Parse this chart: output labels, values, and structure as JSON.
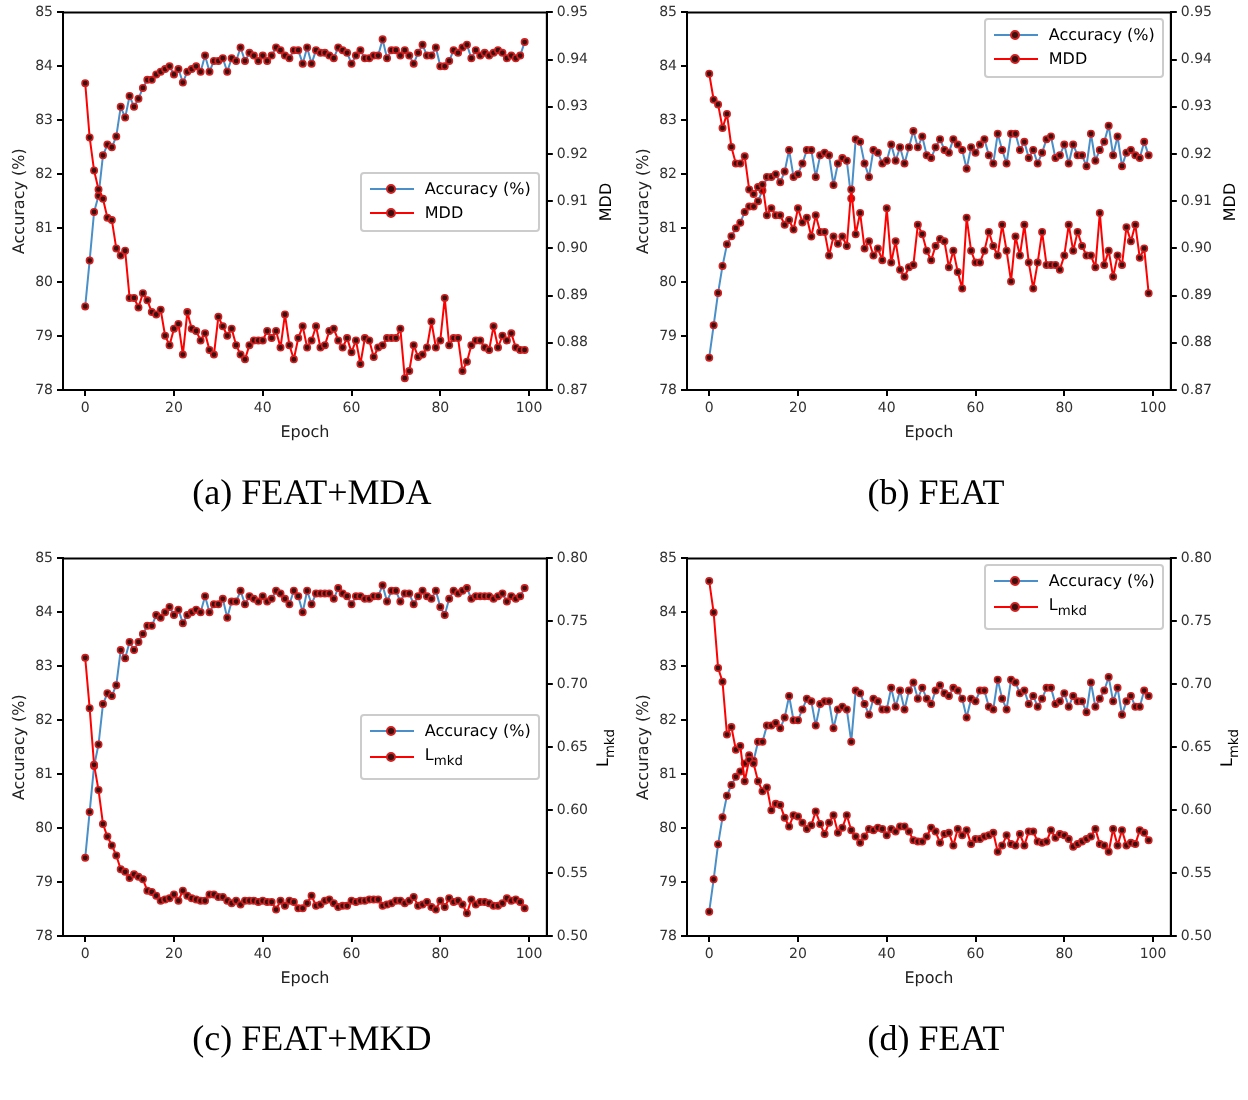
{
  "chart_data": [
    {
      "type": "line",
      "annotations": [
        "(a) FEAT+MDA"
      ],
      "xlabel": "Epoch",
      "ylabel": "Accuracy (%)",
      "y2label": "MDD",
      "legend": "right",
      "marker": "circle",
      "xlim": [
        -5,
        104
      ],
      "xticks": [
        0,
        20,
        40,
        60,
        80,
        100
      ],
      "ylim": [
        78,
        85
      ],
      "yticks": [
        78,
        79,
        80,
        81,
        82,
        83,
        84,
        85
      ],
      "y2lim": [
        0.87,
        0.95
      ],
      "y2ticks": [
        0.87,
        0.88,
        0.89,
        {
          "value": 0.9,
          "label": "0.90"
        },
        0.91,
        0.92,
        0.93,
        0.94,
        0.95
      ],
      "x": [
        0,
        1,
        2,
        3,
        4,
        5,
        6,
        7,
        8,
        9,
        10,
        11,
        12,
        13,
        14,
        15,
        16,
        17,
        18,
        19,
        20,
        21,
        22,
        23,
        24,
        25,
        26,
        27,
        28,
        29,
        30,
        31,
        32,
        33,
        34,
        35,
        36,
        37,
        38,
        39,
        40,
        41,
        42,
        43,
        44,
        45,
        46,
        47,
        48,
        49,
        50,
        51,
        52,
        53,
        54,
        55,
        56,
        57,
        58,
        59,
        60,
        61,
        62,
        63,
        64,
        65,
        66,
        67,
        68,
        69,
        70,
        71,
        72,
        73,
        74,
        75,
        76,
        77,
        78,
        79,
        80,
        81,
        82,
        83,
        84,
        85,
        86,
        87,
        88,
        89,
        90,
        91,
        92,
        93,
        94,
        95,
        96,
        97,
        98,
        99
      ],
      "series": [
        {
          "name": "Accuracy (%)",
          "color": "#4a8fc7",
          "values": [
            79.55,
            80.4,
            81.3,
            81.6,
            82.35,
            82.55,
            82.5,
            82.7,
            83.25,
            83.05,
            83.45,
            83.25,
            83.4,
            83.6,
            83.75,
            83.75,
            83.85,
            83.9,
            83.95,
            84.0,
            83.85,
            83.95,
            83.7,
            83.9,
            83.95,
            84.0,
            83.9,
            84.2,
            83.9,
            84.1,
            84.1,
            84.15,
            83.9,
            84.15,
            84.1,
            84.35,
            84.1,
            84.25,
            84.2,
            84.1,
            84.2,
            84.1,
            84.2,
            84.35,
            84.3,
            84.2,
            84.15,
            84.3,
            84.3,
            84.05,
            84.35,
            84.05,
            84.3,
            84.25,
            84.25,
            84.2,
            84.15,
            84.35,
            84.3,
            84.25,
            84.05,
            84.2,
            84.3,
            84.15,
            84.15,
            84.2,
            84.2,
            84.5,
            84.15,
            84.3,
            84.3,
            84.2,
            84.3,
            84.2,
            84.05,
            84.25,
            84.4,
            84.2,
            84.2,
            84.35,
            84.0,
            84.0,
            84.1,
            84.3,
            84.25,
            84.35,
            84.4,
            84.15,
            84.3,
            84.2,
            84.25,
            84.2,
            84.25,
            84.3,
            84.25,
            84.15,
            84.2,
            84.15,
            84.2,
            84.45
          ]
        },
        {
          "name": "MDD",
          "color": "#ff0000",
          "axis": "y2",
          "values": [
            0.935,
            0.9235,
            0.9165,
            0.9125,
            0.9105,
            0.9065,
            0.906,
            0.9,
            0.8985,
            0.8995,
            0.8895,
            0.8895,
            0.8875,
            0.8905,
            0.889,
            0.8865,
            0.886,
            0.887,
            0.8815,
            0.8795,
            0.883,
            0.884,
            0.8775,
            0.8865,
            0.883,
            0.8825,
            0.8805,
            0.882,
            0.8785,
            0.8775,
            0.8855,
            0.8835,
            0.8815,
            0.883,
            0.8795,
            0.8775,
            0.8765,
            0.8795,
            0.8805,
            0.8805,
            0.8805,
            0.8825,
            0.881,
            0.8825,
            0.879,
            0.886,
            0.8795,
            0.8765,
            0.881,
            0.8835,
            0.879,
            0.8805,
            0.8835,
            0.879,
            0.8795,
            0.8825,
            0.883,
            0.8805,
            0.879,
            0.881,
            0.878,
            0.8805,
            0.8755,
            0.881,
            0.8805,
            0.877,
            0.879,
            0.8795,
            0.881,
            0.881,
            0.881,
            0.883,
            0.8725,
            0.874,
            0.8795,
            0.877,
            0.8775,
            0.879,
            0.8845,
            0.879,
            0.8805,
            0.8895,
            0.8795,
            0.881,
            0.881,
            0.874,
            0.876,
            0.8795,
            0.8805,
            0.8805,
            0.879,
            0.8785,
            0.8835,
            0.879,
            0.8815,
            0.8805,
            0.882,
            0.879,
            0.8785,
            0.8785
          ]
        }
      ]
    },
    {
      "type": "line",
      "annotations": [
        "(b) FEAT"
      ],
      "xlabel": "Epoch",
      "ylabel": "Accuracy (%)",
      "y2label": "MDD",
      "legend": "top right",
      "marker": "circle",
      "xlim": [
        -5,
        104
      ],
      "xticks": [
        0,
        20,
        40,
        60,
        80,
        100
      ],
      "ylim": [
        78,
        85
      ],
      "yticks": [
        78,
        79,
        80,
        81,
        82,
        83,
        84,
        85
      ],
      "y2lim": [
        0.87,
        0.95
      ],
      "y2ticks": [
        0.87,
        0.88,
        0.89,
        {
          "value": 0.9,
          "label": "0.90"
        },
        0.91,
        0.92,
        0.93,
        0.94,
        0.95
      ],
      "x": [
        0,
        1,
        2,
        3,
        4,
        5,
        6,
        7,
        8,
        9,
        10,
        11,
        12,
        13,
        14,
        15,
        16,
        17,
        18,
        19,
        20,
        21,
        22,
        23,
        24,
        25,
        26,
        27,
        28,
        29,
        30,
        31,
        32,
        33,
        34,
        35,
        36,
        37,
        38,
        39,
        40,
        41,
        42,
        43,
        44,
        45,
        46,
        47,
        48,
        49,
        50,
        51,
        52,
        53,
        54,
        55,
        56,
        57,
        58,
        59,
        60,
        61,
        62,
        63,
        64,
        65,
        66,
        67,
        68,
        69,
        70,
        71,
        72,
        73,
        74,
        75,
        76,
        77,
        78,
        79,
        80,
        81,
        82,
        83,
        84,
        85,
        86,
        87,
        88,
        89,
        90,
        91,
        92,
        93,
        94,
        95,
        96,
        97,
        98,
        99
      ],
      "series": [
        {
          "name": "Accuracy (%)",
          "color": "#4a8fc7",
          "values": [
            78.6,
            79.2,
            79.8,
            80.3,
            80.7,
            80.85,
            81.0,
            81.1,
            81.3,
            81.4,
            81.4,
            81.5,
            81.7,
            81.95,
            81.95,
            82.0,
            81.85,
            82.05,
            82.45,
            81.95,
            82.0,
            82.2,
            82.45,
            82.45,
            81.95,
            82.35,
            82.4,
            82.35,
            81.8,
            82.2,
            82.3,
            82.25,
            81.55,
            82.65,
            82.6,
            82.2,
            81.95,
            82.45,
            82.4,
            82.2,
            82.25,
            82.55,
            82.25,
            82.5,
            82.2,
            82.5,
            82.8,
            82.5,
            82.7,
            82.35,
            82.3,
            82.5,
            82.65,
            82.45,
            82.4,
            82.65,
            82.55,
            82.45,
            82.1,
            82.5,
            82.4,
            82.55,
            82.65,
            82.35,
            82.2,
            82.75,
            82.45,
            82.2,
            82.75,
            82.75,
            82.45,
            82.6,
            82.3,
            82.45,
            82.2,
            82.4,
            82.65,
            82.7,
            82.3,
            82.35,
            82.55,
            82.2,
            82.55,
            82.35,
            82.35,
            82.15,
            82.75,
            82.25,
            82.45,
            82.6,
            82.9,
            82.35,
            82.7,
            82.15,
            82.4,
            82.45,
            82.35,
            82.3,
            82.6,
            82.35
          ]
        },
        {
          "name": "MDD",
          "color": "#ff0000",
          "axis": "y2",
          "values": [
            0.937,
            0.9315,
            0.9305,
            0.9255,
            0.9285,
            0.9215,
            0.918,
            0.918,
            0.9195,
            0.9125,
            0.9115,
            0.913,
            0.9135,
            0.907,
            0.9085,
            0.907,
            0.907,
            0.905,
            0.906,
            0.904,
            0.9085,
            0.9055,
            0.9065,
            0.9025,
            0.907,
            0.9035,
            0.9035,
            0.8985,
            0.9025,
            0.901,
            0.9025,
            0.9005,
            0.9125,
            0.903,
            0.9075,
            0.9,
            0.9015,
            0.8985,
            0.9,
            0.8975,
            0.9085,
            0.897,
            0.9015,
            0.8955,
            0.894,
            0.896,
            0.8965,
            0.905,
            0.903,
            0.8995,
            0.8975,
            0.9005,
            0.902,
            0.9015,
            0.896,
            0.8995,
            0.895,
            0.8915,
            0.9065,
            0.8995,
            0.897,
            0.897,
            0.8995,
            0.9035,
            0.9005,
            0.8985,
            0.905,
            0.8995,
            0.893,
            0.9025,
            0.8985,
            0.905,
            0.897,
            0.8915,
            0.897,
            0.9035,
            0.8965,
            0.8965,
            0.8965,
            0.8955,
            0.8985,
            0.905,
            0.8995,
            0.9035,
            0.9005,
            0.8985,
            0.8985,
            0.896,
            0.9075,
            0.8965,
            0.8995,
            0.894,
            0.8985,
            0.8965,
            0.9045,
            0.9015,
            0.905,
            0.898,
            0.9,
            0.8905
          ]
        }
      ]
    },
    {
      "type": "line",
      "annotations": [
        "(c) FEAT+MKD"
      ],
      "xlabel": "Epoch",
      "ylabel": "Accuracy (%)",
      "y2label": "L$_{mkd}$",
      "legend": "right",
      "marker": "circle",
      "xlim": [
        -5,
        104
      ],
      "xticks": [
        0,
        20,
        40,
        60,
        80,
        100
      ],
      "ylim": [
        78,
        85
      ],
      "yticks": [
        78,
        79,
        80,
        81,
        82,
        83,
        84,
        85
      ],
      "y2lim": [
        0.5,
        0.8
      ],
      "y2ticks": [
        {
          "value": 0.5,
          "label": "0.50"
        },
        0.55,
        {
          "value": 0.6,
          "label": "0.60"
        },
        0.65,
        {
          "value": 0.7,
          "label": "0.70"
        },
        0.75,
        {
          "value": 0.8,
          "label": "0.80"
        }
      ],
      "x": [
        0,
        1,
        2,
        3,
        4,
        5,
        6,
        7,
        8,
        9,
        10,
        11,
        12,
        13,
        14,
        15,
        16,
        17,
        18,
        19,
        20,
        21,
        22,
        23,
        24,
        25,
        26,
        27,
        28,
        29,
        30,
        31,
        32,
        33,
        34,
        35,
        36,
        37,
        38,
        39,
        40,
        41,
        42,
        43,
        44,
        45,
        46,
        47,
        48,
        49,
        50,
        51,
        52,
        53,
        54,
        55,
        56,
        57,
        58,
        59,
        60,
        61,
        62,
        63,
        64,
        65,
        66,
        67,
        68,
        69,
        70,
        71,
        72,
        73,
        74,
        75,
        76,
        77,
        78,
        79,
        80,
        81,
        82,
        83,
        84,
        85,
        86,
        87,
        88,
        89,
        90,
        91,
        92,
        93,
        94,
        95,
        96,
        97,
        98,
        99
      ],
      "series": [
        {
          "name": "Accuracy (%)",
          "color": "#4a8fc7",
          "values": [
            79.45,
            80.3,
            81.15,
            81.55,
            82.3,
            82.5,
            82.45,
            82.65,
            83.3,
            83.15,
            83.45,
            83.3,
            83.45,
            83.6,
            83.75,
            83.75,
            83.95,
            83.9,
            84.0,
            84.1,
            83.95,
            84.05,
            83.8,
            83.95,
            84.0,
            84.05,
            84.0,
            84.3,
            84.0,
            84.15,
            84.15,
            84.25,
            83.9,
            84.2,
            84.2,
            84.4,
            84.15,
            84.3,
            84.25,
            84.2,
            84.3,
            84.2,
            84.25,
            84.4,
            84.35,
            84.25,
            84.15,
            84.4,
            84.3,
            84.0,
            84.4,
            84.15,
            84.35,
            84.35,
            84.35,
            84.35,
            84.25,
            84.45,
            84.35,
            84.3,
            84.15,
            84.3,
            84.3,
            84.25,
            84.25,
            84.3,
            84.3,
            84.5,
            84.2,
            84.4,
            84.4,
            84.2,
            84.35,
            84.35,
            84.15,
            84.3,
            84.4,
            84.3,
            84.25,
            84.4,
            84.1,
            83.95,
            84.25,
            84.4,
            84.35,
            84.4,
            84.45,
            84.25,
            84.3,
            84.3,
            84.3,
            84.3,
            84.25,
            84.3,
            84.35,
            84.2,
            84.3,
            84.25,
            84.3,
            84.45
          ]
        },
        {
          "name": "L$_{mkd}$",
          "color": "#ff0000",
          "axis": "y2",
          "values": [
            0.721,
            0.681,
            0.636,
            0.616,
            0.589,
            0.579,
            0.572,
            0.564,
            0.553,
            0.551,
            0.546,
            0.549,
            0.547,
            0.545,
            0.536,
            0.535,
            0.532,
            0.528,
            0.529,
            0.53,
            0.533,
            0.528,
            0.536,
            0.532,
            0.53,
            0.529,
            0.528,
            0.528,
            0.533,
            0.533,
            0.531,
            0.531,
            0.528,
            0.526,
            0.528,
            0.525,
            0.528,
            0.528,
            0.528,
            0.527,
            0.528,
            0.527,
            0.527,
            0.521,
            0.528,
            0.524,
            0.528,
            0.527,
            0.522,
            0.522,
            0.526,
            0.532,
            0.524,
            0.525,
            0.528,
            0.529,
            0.526,
            0.523,
            0.524,
            0.524,
            0.528,
            0.527,
            0.528,
            0.528,
            0.529,
            0.529,
            0.529,
            0.524,
            0.525,
            0.526,
            0.528,
            0.528,
            0.526,
            0.528,
            0.531,
            0.524,
            0.525,
            0.527,
            0.523,
            0.521,
            0.528,
            0.523,
            0.53,
            0.527,
            0.528,
            0.525,
            0.518,
            0.529,
            0.525,
            0.527,
            0.527,
            0.526,
            0.524,
            0.524,
            0.526,
            0.53,
            0.528,
            0.529,
            0.527,
            0.522
          ]
        }
      ]
    },
    {
      "type": "line",
      "annotations": [
        "(d) FEAT"
      ],
      "xlabel": "Epoch",
      "ylabel": "Accuracy (%)",
      "y2label": "L$_{mkd}$",
      "legend": "top right",
      "marker": "circle",
      "xlim": [
        -5,
        104
      ],
      "xticks": [
        0,
        20,
        40,
        60,
        80,
        100
      ],
      "ylim": [
        78,
        85
      ],
      "yticks": [
        78,
        79,
        80,
        81,
        82,
        83,
        84,
        85
      ],
      "y2lim": [
        0.5,
        0.8
      ],
      "y2ticks": [
        {
          "value": 0.5,
          "label": "0.50"
        },
        0.55,
        {
          "value": 0.6,
          "label": "0.60"
        },
        0.65,
        {
          "value": 0.7,
          "label": "0.70"
        },
        0.75,
        {
          "value": 0.8,
          "label": "0.80"
        }
      ],
      "x": [
        0,
        1,
        2,
        3,
        4,
        5,
        6,
        7,
        8,
        9,
        10,
        11,
        12,
        13,
        14,
        15,
        16,
        17,
        18,
        19,
        20,
        21,
        22,
        23,
        24,
        25,
        26,
        27,
        28,
        29,
        30,
        31,
        32,
        33,
        34,
        35,
        36,
        37,
        38,
        39,
        40,
        41,
        42,
        43,
        44,
        45,
        46,
        47,
        48,
        49,
        50,
        51,
        52,
        53,
        54,
        55,
        56,
        57,
        58,
        59,
        60,
        61,
        62,
        63,
        64,
        65,
        66,
        67,
        68,
        69,
        70,
        71,
        72,
        73,
        74,
        75,
        76,
        77,
        78,
        79,
        80,
        81,
        82,
        83,
        84,
        85,
        86,
        87,
        88,
        89,
        90,
        91,
        92,
        93,
        94,
        95,
        96,
        97,
        98,
        99
      ],
      "series": [
        {
          "name": "Accuracy (%)",
          "color": "#4a8fc7",
          "values": [
            78.45,
            79.05,
            79.7,
            80.2,
            80.6,
            80.8,
            80.95,
            81.05,
            81.2,
            81.35,
            81.25,
            81.6,
            81.6,
            81.9,
            81.9,
            81.95,
            81.85,
            82.05,
            82.45,
            82.0,
            82.0,
            82.2,
            82.4,
            82.35,
            81.9,
            82.3,
            82.35,
            82.35,
            81.85,
            82.2,
            82.25,
            82.2,
            81.6,
            82.55,
            82.5,
            82.3,
            82.1,
            82.4,
            82.35,
            82.2,
            82.2,
            82.6,
            82.25,
            82.55,
            82.2,
            82.55,
            82.7,
            82.4,
            82.6,
            82.4,
            82.3,
            82.55,
            82.65,
            82.5,
            82.45,
            82.6,
            82.55,
            82.4,
            82.05,
            82.4,
            82.35,
            82.55,
            82.55,
            82.25,
            82.2,
            82.75,
            82.4,
            82.2,
            82.75,
            82.7,
            82.5,
            82.55,
            82.3,
            82.45,
            82.25,
            82.4,
            82.6,
            82.6,
            82.3,
            82.35,
            82.5,
            82.25,
            82.45,
            82.35,
            82.35,
            82.15,
            82.7,
            82.25,
            82.4,
            82.55,
            82.8,
            82.35,
            82.6,
            82.1,
            82.35,
            82.45,
            82.25,
            82.25,
            82.55,
            82.45
          ]
        },
        {
          "name": "L$_{mkd}$",
          "color": "#ff0000",
          "axis": "y2",
          "values": [
            0.782,
            0.757,
            0.713,
            0.702,
            0.66,
            0.666,
            0.648,
            0.651,
            0.623,
            0.64,
            0.637,
            0.623,
            0.615,
            0.618,
            0.6,
            0.605,
            0.604,
            0.594,
            0.587,
            0.596,
            0.595,
            0.59,
            0.585,
            0.588,
            0.599,
            0.589,
            0.581,
            0.59,
            0.596,
            0.582,
            0.586,
            0.596,
            0.584,
            0.579,
            0.574,
            0.579,
            0.585,
            0.584,
            0.586,
            0.585,
            0.58,
            0.585,
            0.583,
            0.587,
            0.587,
            0.583,
            0.576,
            0.575,
            0.575,
            0.579,
            0.586,
            0.583,
            0.574,
            0.581,
            0.582,
            0.572,
            0.585,
            0.58,
            0.584,
            0.573,
            0.577,
            0.577,
            0.579,
            0.58,
            0.582,
            0.567,
            0.572,
            0.58,
            0.573,
            0.572,
            0.581,
            0.572,
            0.583,
            0.583,
            0.575,
            0.574,
            0.575,
            0.584,
            0.578,
            0.581,
            0.58,
            0.577,
            0.571,
            0.573,
            0.575,
            0.577,
            0.579,
            0.585,
            0.573,
            0.572,
            0.567,
            0.585,
            0.572,
            0.584,
            0.572,
            0.574,
            0.573,
            0.584,
            0.582,
            0.576
          ]
        }
      ]
    }
  ]
}
